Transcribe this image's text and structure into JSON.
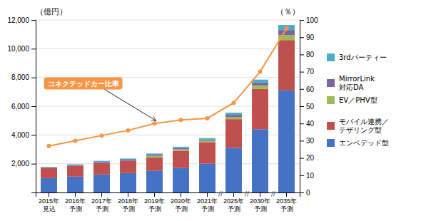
{
  "chart_data": {
    "type": "bar",
    "stacked": true,
    "categories": [
      "2015年\n見込",
      "2016年\n予測",
      "2017年\n予測",
      "2018年\n予測",
      "2019年\n予測",
      "2020年\n予測",
      "2021年\n予測",
      "2025年\n予測",
      "2030年\n予測",
      "2035年\n予測"
    ],
    "series": [
      {
        "name": "エンベデッド型",
        "color": "#4472C4",
        "values": [
          1000,
          1100,
          1250,
          1350,
          1500,
          1700,
          2000,
          3100,
          4400,
          7100
        ]
      },
      {
        "name": "モバイル連携／\nテザリング型",
        "color": "#C0504D",
        "values": [
          700,
          750,
          800,
          850,
          950,
          1200,
          1500,
          2000,
          2800,
          3500
        ]
      },
      {
        "name": "EV／PHV型",
        "color": "#9BBB59",
        "values": [
          0,
          0,
          0,
          0,
          100,
          100,
          100,
          150,
          250,
          350
        ]
      },
      {
        "name": "MirrorLink\n対応DA",
        "color": "#8064A2",
        "values": [
          30,
          50,
          70,
          80,
          80,
          80,
          80,
          150,
          200,
          350
        ]
      },
      {
        "name": "3rdパーティー",
        "color": "#4BACC6",
        "values": [
          50,
          60,
          80,
          80,
          80,
          100,
          100,
          150,
          200,
          350
        ]
      },
      {
        "type": "line",
        "axis": "y2",
        "color": "#F79646",
        "marker": "circle",
        "values": [
          27,
          30,
          33,
          36,
          40,
          42,
          43,
          52,
          70,
          95
        ]
      }
    ],
    "ylabel": "（億円）",
    "y2label": "（％）",
    "ylim": [
      0,
      12000
    ],
    "yticks": [
      {
        "value": 2000,
        "label": "2,000"
      },
      {
        "value": 4000,
        "label": "4,000"
      },
      {
        "value": 6000,
        "label": "6,000"
      },
      {
        "value": 8000,
        "label": "8,000"
      },
      {
        "value": 10000,
        "label": "10,000"
      },
      {
        "value": 12000,
        "label": "12,000"
      }
    ],
    "y2lim": [
      0,
      100
    ],
    "y2ticks": [
      0,
      10,
      20,
      30,
      40,
      50,
      60,
      70,
      80,
      90,
      100
    ],
    "grid": true,
    "legend": "right",
    "annotations": [
      {
        "text": "コネクテッドカー比率",
        "x": "2019年\n予測"
      }
    ],
    "axis_breaks": [
      {
        "after": "2021年\n予測",
        "label": "//"
      },
      {
        "after": "2025年\n予測",
        "label": "//"
      },
      {
        "after": "2030年\n予測",
        "label": "//"
      }
    ]
  }
}
